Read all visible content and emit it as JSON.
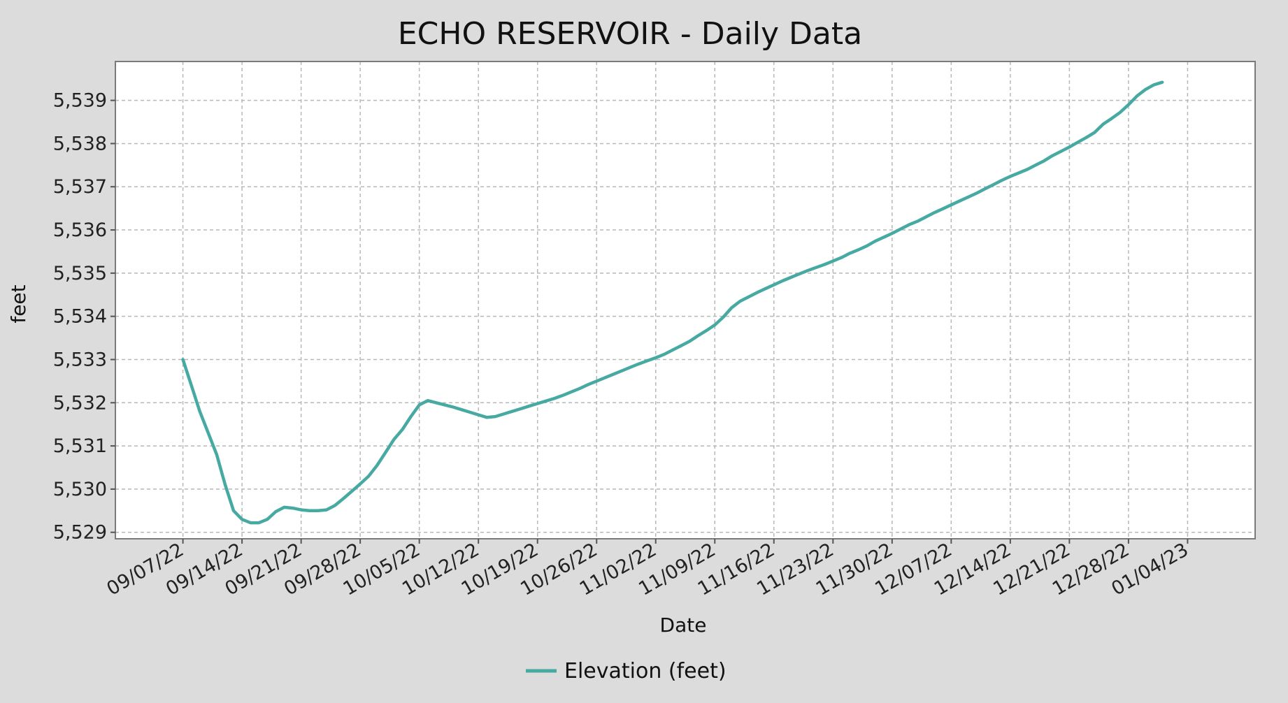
{
  "chart_data": {
    "type": "line",
    "title": "ECHO RESERVOIR - Daily Data",
    "xlabel": "Date",
    "ylabel": "feet",
    "ylim": [
      5528.85,
      5539.9
    ],
    "xlim": [
      "2022-08-30",
      "2023-01-12"
    ],
    "y_ticks": [
      5529,
      5530,
      5531,
      5532,
      5533,
      5534,
      5535,
      5536,
      5537,
      5538,
      5539
    ],
    "y_tick_labels": [
      "5,529",
      "5,530",
      "5,531",
      "5,532",
      "5,533",
      "5,534",
      "5,535",
      "5,536",
      "5,537",
      "5,538",
      "5,539"
    ],
    "x_ticks": [
      "2022-09-07",
      "2022-09-14",
      "2022-09-21",
      "2022-09-28",
      "2022-10-05",
      "2022-10-12",
      "2022-10-19",
      "2022-10-26",
      "2022-11-02",
      "2022-11-09",
      "2022-11-16",
      "2022-11-23",
      "2022-11-30",
      "2022-12-07",
      "2022-12-14",
      "2022-12-21",
      "2022-12-28",
      "2023-01-04"
    ],
    "x_tick_labels": [
      "09/07/22",
      "09/14/22",
      "09/21/22",
      "09/28/22",
      "10/05/22",
      "10/12/22",
      "10/19/22",
      "10/26/22",
      "11/02/22",
      "11/09/22",
      "11/16/22",
      "11/23/22",
      "11/30/22",
      "12/07/22",
      "12/14/22",
      "12/21/22",
      "12/28/22",
      "01/04/23"
    ],
    "grid": true,
    "legend_position": "bottom-center",
    "colors": {
      "background": "#dcdcdc",
      "plot_background": "#ffffff",
      "series": "#46aaa2"
    },
    "series": [
      {
        "name": "Elevation (feet)",
        "points": [
          [
            "2022-09-07",
            5533.0
          ],
          [
            "2022-09-08",
            5532.4
          ],
          [
            "2022-09-09",
            5531.8
          ],
          [
            "2022-09-10",
            5531.3
          ],
          [
            "2022-09-11",
            5530.8
          ],
          [
            "2022-09-12",
            5530.1
          ],
          [
            "2022-09-13",
            5529.5
          ],
          [
            "2022-09-14",
            5529.3
          ],
          [
            "2022-09-15",
            5529.22
          ],
          [
            "2022-09-16",
            5529.22
          ],
          [
            "2022-09-17",
            5529.3
          ],
          [
            "2022-09-18",
            5529.48
          ],
          [
            "2022-09-19",
            5529.58
          ],
          [
            "2022-09-20",
            5529.56
          ],
          [
            "2022-09-21",
            5529.52
          ],
          [
            "2022-09-22",
            5529.5
          ],
          [
            "2022-09-23",
            5529.5
          ],
          [
            "2022-09-24",
            5529.52
          ],
          [
            "2022-09-25",
            5529.62
          ],
          [
            "2022-09-26",
            5529.78
          ],
          [
            "2022-09-27",
            5529.95
          ],
          [
            "2022-09-28",
            5530.12
          ],
          [
            "2022-09-29",
            5530.3
          ],
          [
            "2022-09-30",
            5530.55
          ],
          [
            "2022-10-01",
            5530.85
          ],
          [
            "2022-10-02",
            5531.15
          ],
          [
            "2022-10-03",
            5531.38
          ],
          [
            "2022-10-04",
            5531.68
          ],
          [
            "2022-10-05",
            5531.95
          ],
          [
            "2022-10-06",
            5532.05
          ],
          [
            "2022-10-07",
            5532.0
          ],
          [
            "2022-10-08",
            5531.95
          ],
          [
            "2022-10-09",
            5531.9
          ],
          [
            "2022-10-10",
            5531.84
          ],
          [
            "2022-10-11",
            5531.78
          ],
          [
            "2022-10-12",
            5531.72
          ],
          [
            "2022-10-13",
            5531.66
          ],
          [
            "2022-10-14",
            5531.68
          ],
          [
            "2022-10-15",
            5531.74
          ],
          [
            "2022-10-16",
            5531.8
          ],
          [
            "2022-10-17",
            5531.86
          ],
          [
            "2022-10-18",
            5531.92
          ],
          [
            "2022-10-19",
            5531.98
          ],
          [
            "2022-10-20",
            5532.04
          ],
          [
            "2022-10-21",
            5532.1
          ],
          [
            "2022-10-22",
            5532.17
          ],
          [
            "2022-10-23",
            5532.25
          ],
          [
            "2022-10-24",
            5532.33
          ],
          [
            "2022-10-25",
            5532.42
          ],
          [
            "2022-10-26",
            5532.5
          ],
          [
            "2022-10-27",
            5532.58
          ],
          [
            "2022-10-28",
            5532.66
          ],
          [
            "2022-10-29",
            5532.74
          ],
          [
            "2022-10-30",
            5532.82
          ],
          [
            "2022-10-31",
            5532.9
          ],
          [
            "2022-11-01",
            5532.97
          ],
          [
            "2022-11-02",
            5533.04
          ],
          [
            "2022-11-03",
            5533.12
          ],
          [
            "2022-11-04",
            5533.22
          ],
          [
            "2022-11-05",
            5533.32
          ],
          [
            "2022-11-06",
            5533.42
          ],
          [
            "2022-11-07",
            5533.55
          ],
          [
            "2022-11-08",
            5533.67
          ],
          [
            "2022-11-09",
            5533.8
          ],
          [
            "2022-11-10",
            5533.98
          ],
          [
            "2022-11-11",
            5534.2
          ],
          [
            "2022-11-12",
            5534.35
          ],
          [
            "2022-11-13",
            5534.45
          ],
          [
            "2022-11-14",
            5534.55
          ],
          [
            "2022-11-15",
            5534.64
          ],
          [
            "2022-11-16",
            5534.73
          ],
          [
            "2022-11-17",
            5534.82
          ],
          [
            "2022-11-18",
            5534.9
          ],
          [
            "2022-11-19",
            5534.98
          ],
          [
            "2022-11-20",
            5535.06
          ],
          [
            "2022-11-21",
            5535.13
          ],
          [
            "2022-11-22",
            5535.2
          ],
          [
            "2022-11-23",
            5535.28
          ],
          [
            "2022-11-24",
            5535.36
          ],
          [
            "2022-11-25",
            5535.46
          ],
          [
            "2022-11-26",
            5535.54
          ],
          [
            "2022-11-27",
            5535.63
          ],
          [
            "2022-11-28",
            5535.74
          ],
          [
            "2022-11-29",
            5535.83
          ],
          [
            "2022-11-30",
            5535.92
          ],
          [
            "2022-12-01",
            5536.02
          ],
          [
            "2022-12-02",
            5536.12
          ],
          [
            "2022-12-03",
            5536.2
          ],
          [
            "2022-12-04",
            5536.3
          ],
          [
            "2022-12-05",
            5536.4
          ],
          [
            "2022-12-06",
            5536.49
          ],
          [
            "2022-12-07",
            5536.58
          ],
          [
            "2022-12-08",
            5536.67
          ],
          [
            "2022-12-09",
            5536.76
          ],
          [
            "2022-12-10",
            5536.85
          ],
          [
            "2022-12-11",
            5536.95
          ],
          [
            "2022-12-12",
            5537.05
          ],
          [
            "2022-12-13",
            5537.15
          ],
          [
            "2022-12-14",
            5537.24
          ],
          [
            "2022-12-15",
            5537.32
          ],
          [
            "2022-12-16",
            5537.4
          ],
          [
            "2022-12-17",
            5537.5
          ],
          [
            "2022-12-18",
            5537.6
          ],
          [
            "2022-12-19",
            5537.72
          ],
          [
            "2022-12-20",
            5537.82
          ],
          [
            "2022-12-21",
            5537.92
          ],
          [
            "2022-12-22",
            5538.03
          ],
          [
            "2022-12-23",
            5538.14
          ],
          [
            "2022-12-24",
            5538.26
          ],
          [
            "2022-12-25",
            5538.45
          ],
          [
            "2022-12-26",
            5538.58
          ],
          [
            "2022-12-27",
            5538.72
          ],
          [
            "2022-12-28",
            5538.9
          ],
          [
            "2022-12-29",
            5539.1
          ],
          [
            "2022-12-30",
            5539.25
          ],
          [
            "2022-12-31",
            5539.36
          ],
          [
            "2023-01-01",
            5539.42
          ]
        ]
      }
    ]
  }
}
